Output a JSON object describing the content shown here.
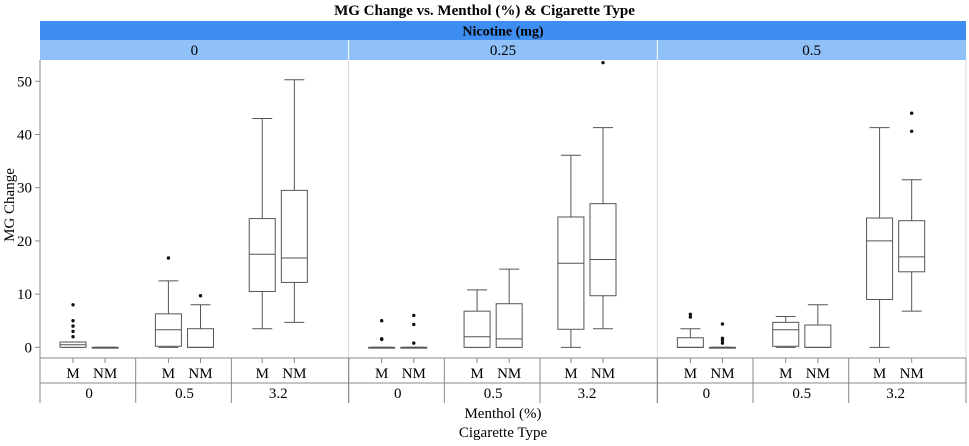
{
  "chart_data": {
    "type": "boxplot",
    "title": "MG Change vs. Menthol (%) & Cigarette Type",
    "facet_title": "Nicotine (mg)",
    "facet_values": [
      "0",
      "0.25",
      "0.5"
    ],
    "ylabel": "MG Change",
    "xlabel_line1": "Menthol (%)",
    "xlabel_line2": "Cigarette Type",
    "ylim": [
      -2,
      54
    ],
    "yticks": [
      0,
      10,
      20,
      30,
      40,
      50
    ],
    "menthol_levels": [
      "0",
      "0.5",
      "3.2"
    ],
    "cigarette_types": [
      "M",
      "NM"
    ],
    "colors": {
      "strip_top": "#3d8ef0",
      "strip_bottom": "#8fc0f8",
      "box_stroke": "#555555",
      "panel_divider": "#d9d9d9"
    },
    "panels": [
      {
        "nicotine": "0",
        "boxes": [
          {
            "menthol": "0",
            "type": "M",
            "low": 0,
            "q1": 0,
            "median": 0.5,
            "q3": 1,
            "high": 1,
            "outliers": [
              2,
              3,
              4,
              5,
              8
            ]
          },
          {
            "menthol": "0",
            "type": "NM",
            "low": 0,
            "q1": 0,
            "median": 0,
            "q3": 0,
            "high": 0,
            "outliers": []
          },
          {
            "menthol": "0.5",
            "type": "M",
            "low": 0,
            "q1": 0.2,
            "median": 3.3,
            "q3": 6.3,
            "high": 12.5,
            "outliers": [
              16.8
            ]
          },
          {
            "menthol": "0.5",
            "type": "NM",
            "low": 0,
            "q1": 0,
            "median": 0,
            "q3": 3.5,
            "high": 8,
            "outliers": [
              9.7
            ]
          },
          {
            "menthol": "3.2",
            "type": "M",
            "low": 3.5,
            "q1": 10.5,
            "median": 17.5,
            "q3": 24.2,
            "high": 43,
            "outliers": []
          },
          {
            "menthol": "3.2",
            "type": "NM",
            "low": 4.7,
            "q1": 12.2,
            "median": 16.8,
            "q3": 29.5,
            "high": 50.3,
            "outliers": []
          }
        ]
      },
      {
        "nicotine": "0.25",
        "boxes": [
          {
            "menthol": "0",
            "type": "M",
            "low": 0,
            "q1": 0,
            "median": 0,
            "q3": 0,
            "high": 0,
            "outliers": [
              1.5,
              1.6,
              5
            ]
          },
          {
            "menthol": "0",
            "type": "NM",
            "low": 0,
            "q1": 0,
            "median": 0,
            "q3": 0,
            "high": 0,
            "outliers": [
              0.8,
              4.3,
              6
            ]
          },
          {
            "menthol": "0.5",
            "type": "M",
            "low": 0,
            "q1": 0,
            "median": 2,
            "q3": 6.8,
            "high": 10.8,
            "outliers": []
          },
          {
            "menthol": "0.5",
            "type": "NM",
            "low": 0,
            "q1": 0,
            "median": 1.6,
            "q3": 8.2,
            "high": 14.7,
            "outliers": []
          },
          {
            "menthol": "3.2",
            "type": "M",
            "low": 0,
            "q1": 3.4,
            "median": 15.8,
            "q3": 24.5,
            "high": 36.1,
            "outliers": []
          },
          {
            "menthol": "3.2",
            "type": "NM",
            "low": 3.5,
            "q1": 9.7,
            "median": 16.5,
            "q3": 27,
            "high": 41.3,
            "outliers": [
              53.5
            ]
          }
        ]
      },
      {
        "nicotine": "0.5",
        "boxes": [
          {
            "menthol": "0",
            "type": "M",
            "low": 0,
            "q1": 0,
            "median": 0,
            "q3": 1.8,
            "high": 3.5,
            "outliers": [
              5.7,
              6.2
            ]
          },
          {
            "menthol": "0",
            "type": "NM",
            "low": 0,
            "q1": 0,
            "median": 0,
            "q3": 0,
            "high": 0,
            "outliers": [
              0.8,
              1.3,
              1.7,
              4.4
            ]
          },
          {
            "menthol": "0.5",
            "type": "M",
            "low": 0,
            "q1": 0.2,
            "median": 3.3,
            "q3": 4.7,
            "high": 5.8,
            "outliers": []
          },
          {
            "menthol": "0.5",
            "type": "NM",
            "low": 0,
            "q1": 0,
            "median": 0,
            "q3": 4.2,
            "high": 8,
            "outliers": []
          },
          {
            "menthol": "3.2",
            "type": "M",
            "low": 0,
            "q1": 9,
            "median": 20,
            "q3": 24.3,
            "high": 41.3,
            "outliers": []
          },
          {
            "menthol": "3.2",
            "type": "NM",
            "low": 6.8,
            "q1": 14.2,
            "median": 17,
            "q3": 23.8,
            "high": 31.5,
            "outliers": [
              40.6,
              44
            ]
          }
        ]
      }
    ]
  }
}
